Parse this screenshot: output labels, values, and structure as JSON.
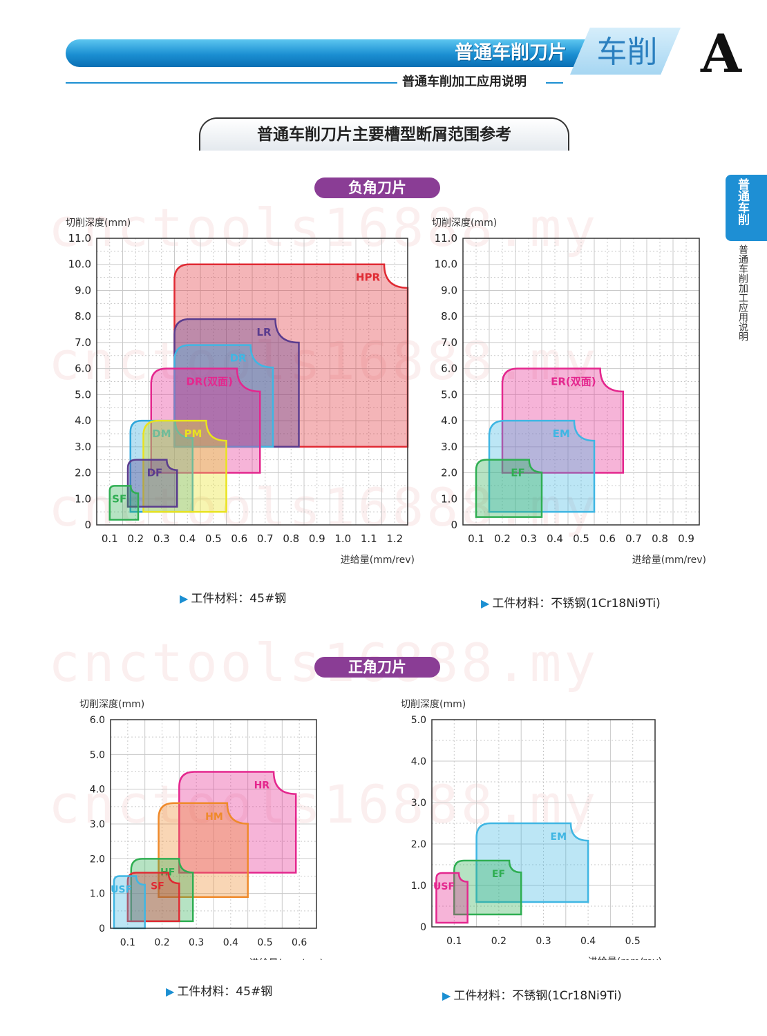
{
  "header": {
    "title": "普通车削刀片",
    "tab_label": "车削",
    "letter": "A",
    "subtitle": "普通车削加工应用说明"
  },
  "section_title": "普通车削刀片主要槽型断屑范围参考",
  "side_tab": {
    "label": "普通车削",
    "sub": "普通车削加工应用说明"
  },
  "watermark": "cnctools16888.my",
  "groups": {
    "negative": "负角刀片",
    "positive": "正角刀片"
  },
  "materials": {
    "steel": "工件材料：45#钢",
    "stainless": "工件材料：不锈钢(1Cr18Ni9Ti)"
  },
  "chart_data": [
    {
      "type": "area",
      "ylabel": "切削深度(mm)",
      "xlabel": "进给量(mm/rev)",
      "xlim": [
        0,
        1.2
      ],
      "ylim": [
        0,
        11
      ],
      "x_ticks": [
        "0.1",
        "0.2",
        "0.3",
        "0.4",
        "0.5",
        "0.6",
        "0.7",
        "0.8",
        "0.9",
        "1.0",
        "1.1",
        "1.2"
      ],
      "y_ticks": [
        "0",
        "1.0",
        "2.0",
        "3.0",
        "4.0",
        "5.0",
        "6.0",
        "7.0",
        "8.0",
        "9.0",
        "10.0",
        "11.0"
      ],
      "grid": true,
      "regions": [
        {
          "name": "HPR",
          "color": "#e02a33",
          "x": [
            0.3,
            1.2
          ],
          "y": [
            3.0,
            10.0
          ]
        },
        {
          "name": "LR",
          "color": "#5a3c8e",
          "x": [
            0.3,
            0.78
          ],
          "y": [
            3.0,
            7.9
          ]
        },
        {
          "name": "DR",
          "color": "#3fb6e3",
          "x": [
            0.3,
            0.68
          ],
          "y": [
            3.0,
            6.9
          ]
        },
        {
          "name": "DR(双面)",
          "color": "#e4278e",
          "x": [
            0.21,
            0.63
          ],
          "y": [
            2.0,
            6.0
          ]
        },
        {
          "name": "DM",
          "color": "#2ea6db",
          "x": [
            0.13,
            0.37
          ],
          "y": [
            0.5,
            4.0
          ]
        },
        {
          "name": "PM",
          "color": "#e9e31f",
          "x": [
            0.18,
            0.5
          ],
          "y": [
            0.5,
            4.0
          ]
        },
        {
          "name": "DF",
          "color": "#5a3c8e",
          "x": [
            0.12,
            0.31
          ],
          "y": [
            0.7,
            2.5
          ]
        },
        {
          "name": "SF",
          "color": "#2fae52",
          "x": [
            0.05,
            0.16
          ],
          "y": [
            0.2,
            1.5
          ]
        }
      ]
    },
    {
      "type": "area",
      "ylabel": "切削深度(mm)",
      "xlabel": "进给量(mm/rev)",
      "xlim": [
        0,
        0.9
      ],
      "ylim": [
        0,
        11
      ],
      "x_ticks": [
        "0.1",
        "0.2",
        "0.3",
        "0.4",
        "0.5",
        "0.6",
        "0.7",
        "0.8",
        "0.9"
      ],
      "y_ticks": [
        "0",
        "1.0",
        "2.0",
        "3.0",
        "4.0",
        "5.0",
        "6.0",
        "7.0",
        "8.0",
        "9.0",
        "10.0",
        "11.0"
      ],
      "grid": true,
      "regions": [
        {
          "name": "ER(双面)",
          "color": "#e4278e",
          "x": [
            0.15,
            0.61
          ],
          "y": [
            2.0,
            6.0
          ]
        },
        {
          "name": "EM",
          "color": "#3fb6e3",
          "x": [
            0.1,
            0.5
          ],
          "y": [
            0.5,
            4.0
          ]
        },
        {
          "name": "EF",
          "color": "#2fae52",
          "x": [
            0.05,
            0.3
          ],
          "y": [
            0.3,
            2.5
          ]
        }
      ]
    },
    {
      "type": "area",
      "ylabel": "切削深度(mm)",
      "xlabel": "进给量(mm/rev)",
      "xlim": [
        0,
        0.6
      ],
      "ylim": [
        0,
        6.0
      ],
      "x_ticks": [
        "0.1",
        "0.2",
        "0.3",
        "0.4",
        "0.5",
        "0.6"
      ],
      "y_ticks": [
        "0",
        "1.0",
        "2.0",
        "3.0",
        "4.0",
        "5.0",
        "6.0"
      ],
      "grid": true,
      "regions": [
        {
          "name": "HR",
          "color": "#e4278e",
          "x": [
            0.2,
            0.54
          ],
          "y": [
            1.6,
            4.5
          ]
        },
        {
          "name": "HM",
          "color": "#ef8a2b",
          "x": [
            0.14,
            0.4
          ],
          "y": [
            0.9,
            3.6
          ]
        },
        {
          "name": "HF",
          "color": "#2fae52",
          "x": [
            0.06,
            0.24
          ],
          "y": [
            0.2,
            2.0
          ]
        },
        {
          "name": "SF",
          "color": "#e02a33",
          "x": [
            0.05,
            0.2
          ],
          "y": [
            0.2,
            1.6
          ]
        },
        {
          "name": "USF",
          "color": "#3fb6e3",
          "x": [
            0.01,
            0.1
          ],
          "y": [
            0.0,
            1.5
          ]
        }
      ]
    },
    {
      "type": "area",
      "ylabel": "切削深度(mm)",
      "xlabel": "进给量(mm/rev)",
      "xlim": [
        0,
        0.5
      ],
      "ylim": [
        0,
        5.0
      ],
      "x_ticks": [
        "0.1",
        "0.2",
        "0.3",
        "0.4",
        "0.5"
      ],
      "y_ticks": [
        "0",
        "1.0",
        "2.0",
        "3.0",
        "4.0",
        "5.0"
      ],
      "grid": true,
      "regions": [
        {
          "name": "EM",
          "color": "#3fb6e3",
          "x": [
            0.1,
            0.35
          ],
          "y": [
            0.6,
            2.5
          ]
        },
        {
          "name": "EF",
          "color": "#2fae52",
          "x": [
            0.05,
            0.2
          ],
          "y": [
            0.3,
            1.6
          ]
        },
        {
          "name": "USF",
          "color": "#e4278e",
          "x": [
            0.01,
            0.08
          ],
          "y": [
            0.1,
            1.3
          ]
        }
      ]
    }
  ]
}
